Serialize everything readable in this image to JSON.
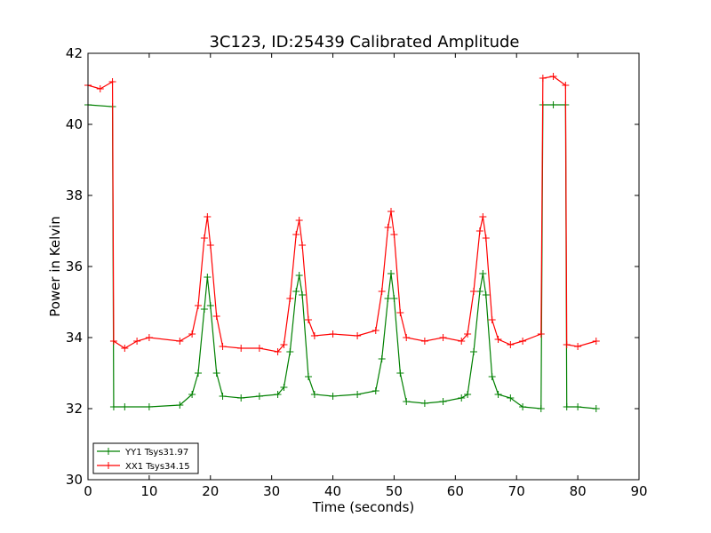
{
  "chart_data": {
    "type": "line",
    "title": "3C123, ID:25439 Calibrated Amplitude",
    "xlabel": "Time (seconds)",
    "ylabel": "Power in Kelvin",
    "xlim": [
      0,
      90
    ],
    "ylim": [
      30,
      42
    ],
    "xticks": [
      0,
      10,
      20,
      30,
      40,
      50,
      60,
      70,
      80,
      90
    ],
    "yticks": [
      30,
      32,
      34,
      36,
      38,
      40,
      42
    ],
    "grid": false,
    "legend_position": "lower-left",
    "marker": "+",
    "series": [
      {
        "name": "YY1 Tsys31.97",
        "color": "#008000",
        "x": [
          0,
          4,
          4.2,
          6,
          10,
          15,
          17,
          18,
          19,
          19.5,
          20,
          21,
          22,
          25,
          28,
          31,
          32,
          33,
          34,
          34.5,
          35,
          36,
          37,
          40,
          44,
          47,
          48,
          49,
          49.5,
          50,
          51,
          52,
          55,
          58,
          61,
          62,
          63,
          64,
          64.5,
          65,
          66,
          67,
          69,
          71,
          74,
          74.3,
          76,
          78,
          78.2,
          80,
          83
        ],
        "y": [
          40.55,
          40.5,
          32.05,
          32.05,
          32.05,
          32.1,
          32.4,
          33.0,
          34.8,
          35.7,
          34.9,
          33.0,
          32.35,
          32.3,
          32.35,
          32.4,
          32.6,
          33.6,
          35.3,
          35.75,
          35.2,
          32.9,
          32.4,
          32.35,
          32.4,
          32.5,
          33.4,
          35.1,
          35.8,
          35.1,
          33.0,
          32.2,
          32.15,
          32.2,
          32.3,
          32.4,
          33.6,
          35.3,
          35.8,
          35.2,
          32.9,
          32.4,
          32.3,
          32.05,
          32.0,
          40.55,
          40.55,
          40.55,
          32.05,
          32.05,
          32.0
        ]
      },
      {
        "name": "XX1 Tsys34.15",
        "color": "#ff0000",
        "x": [
          0,
          2,
          4,
          4.2,
          6,
          8,
          10,
          15,
          17,
          18,
          19,
          19.5,
          20,
          21,
          22,
          25,
          28,
          31,
          32,
          33,
          34,
          34.5,
          35,
          36,
          37,
          40,
          44,
          47,
          48,
          49,
          49.5,
          50,
          51,
          52,
          55,
          58,
          61,
          62,
          63,
          64,
          64.5,
          65,
          66,
          67,
          69,
          71,
          74,
          74.3,
          76,
          78,
          78.2,
          80,
          83
        ],
        "y": [
          41.1,
          41.0,
          41.2,
          33.9,
          33.7,
          33.9,
          34.0,
          33.9,
          34.1,
          34.9,
          36.8,
          37.4,
          36.6,
          34.6,
          33.75,
          33.7,
          33.7,
          33.6,
          33.8,
          35.1,
          36.9,
          37.3,
          36.6,
          34.5,
          34.05,
          34.1,
          34.05,
          34.2,
          35.3,
          37.1,
          37.55,
          36.9,
          34.7,
          34.0,
          33.9,
          34.0,
          33.9,
          34.1,
          35.3,
          37.0,
          37.4,
          36.8,
          34.5,
          33.95,
          33.8,
          33.9,
          34.1,
          41.3,
          41.35,
          41.1,
          33.8,
          33.75,
          33.9
        ]
      }
    ]
  }
}
